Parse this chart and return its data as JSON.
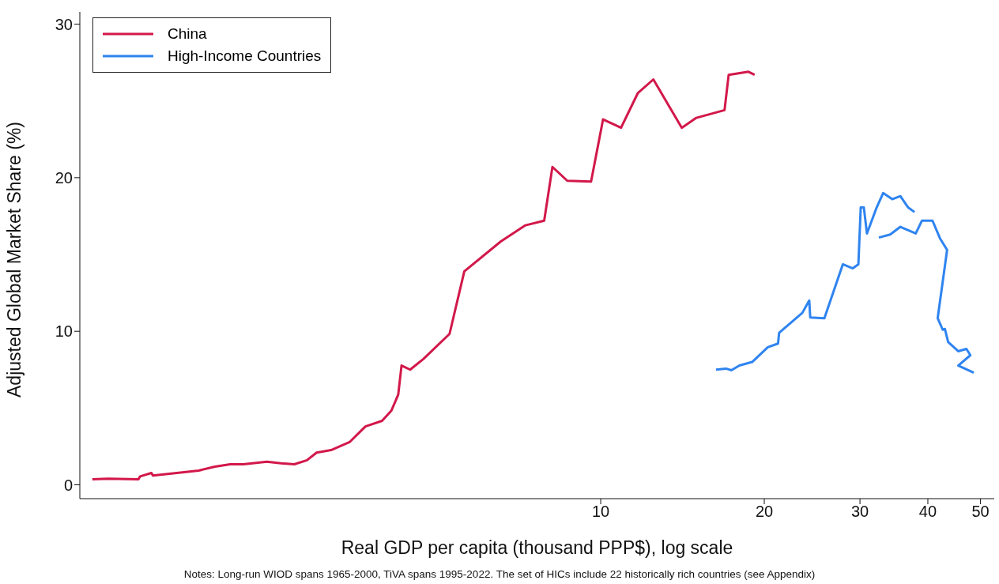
{
  "chart_data": {
    "type": "line",
    "xlabel": "Real GDP per capita (thousand PPP$), log scale",
    "ylabel": "Adjusted Global Market Share (%)",
    "annotations": [
      "Notes: Long-run WIOD spans 1965-2000, TiVA spans 1995-2022. The set of HICs include 22 historically rich countries (see Appendix)"
    ],
    "log": "x",
    "xlim": [
      1.1,
      53
    ],
    "xticks": [
      10,
      20,
      30,
      40,
      50
    ],
    "ylim": [
      -0.9,
      30.8
    ],
    "yticks": [
      0,
      10,
      20,
      30
    ],
    "grid": false,
    "legend": "top left",
    "marker": "none",
    "line_style": "solid",
    "series": [
      {
        "name": "China",
        "color": "#d2184a",
        "x": [
          1.16,
          1.24,
          1.41,
          1.42,
          1.49,
          1.5,
          1.82,
          1.95,
          2.08,
          2.2,
          2.43,
          2.58,
          2.73,
          2.88,
          3.0,
          3.19,
          3.45,
          3.69,
          3.96,
          4.12,
          4.24,
          4.3,
          4.46,
          4.72,
          5.27,
          5.61,
          6.55,
          7.27,
          7.87,
          8.15,
          8.68,
          9.6,
          10.1,
          10.9,
          11.7,
          12.5,
          14.1,
          15.0,
          16.9,
          17.2,
          18.7,
          19.2
        ],
        "values": [
          0.36,
          0.4,
          0.36,
          0.55,
          0.77,
          0.6,
          0.93,
          1.18,
          1.34,
          1.34,
          1.5,
          1.4,
          1.34,
          1.6,
          2.1,
          2.26,
          2.78,
          3.8,
          4.17,
          4.84,
          5.87,
          7.77,
          7.5,
          8.2,
          9.83,
          13.9,
          15.85,
          16.9,
          17.2,
          20.7,
          19.8,
          19.75,
          23.8,
          23.25,
          25.5,
          26.4,
          23.25,
          23.9,
          24.4,
          26.7,
          26.9,
          26.7
        ]
      },
      {
        "name": "High-Income Countries",
        "color": "#2f84f0",
        "x": [
          16.3,
          17.0,
          17.4,
          18.0,
          19.0,
          20.3,
          21.2,
          21.3,
          23.5,
          24.2,
          24.3,
          25.8,
          27.9,
          29.1,
          29.8,
          30.1,
          30.5,
          30.9,
          32.2,
          33.1,
          34.4,
          35.6,
          36.8,
          37.8,
          null,
          32.5,
          34.1,
          35.6,
          38.0,
          39.0,
          40.8,
          42.1,
          43.4,
          41.7,
          42.6,
          43.0,
          43.6,
          45.5,
          47.1,
          47.9,
          45.5,
          48.6
        ],
        "values": [
          7.5,
          7.57,
          7.46,
          7.77,
          8.0,
          8.96,
          9.2,
          9.9,
          11.2,
          12.0,
          10.9,
          10.85,
          14.36,
          14.1,
          14.36,
          18.06,
          18.06,
          16.37,
          18.06,
          19.0,
          18.6,
          18.8,
          18.06,
          17.76,
          null,
          16.1,
          16.3,
          16.8,
          16.37,
          17.2,
          17.2,
          16.06,
          15.3,
          10.85,
          10.1,
          10.15,
          9.3,
          8.7,
          8.85,
          8.44,
          7.77,
          7.3
        ]
      }
    ]
  }
}
